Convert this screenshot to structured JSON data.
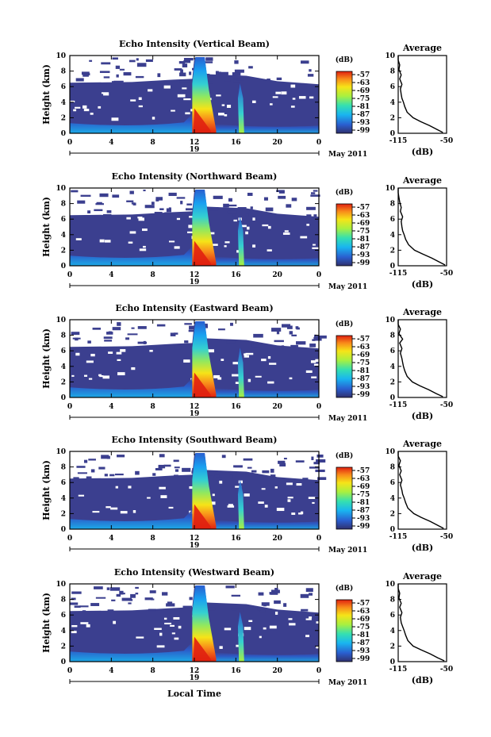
{
  "figure": {
    "xlabel": "Local Time",
    "date_label": "May 2011",
    "day_label": "19",
    "colorbar_unit": "(dB)",
    "colorbar_ticks": [
      "-57",
      "-63",
      "-69",
      "-75",
      "-81",
      "-87",
      "-93",
      "-99"
    ],
    "colors": {
      "background_echo": "#3b3f8f",
      "colormap": [
        "#30306e",
        "#2a5fd0",
        "#19b5f0",
        "#35e0b0",
        "#a8f040",
        "#f6e418",
        "#f88a1a",
        "#e02010"
      ]
    }
  },
  "chart_data": [
    {
      "type": "heatmap",
      "title": "Echo Intensity (Vertical Beam)",
      "ylabel": "Height (km)",
      "ylim": [
        0,
        10
      ],
      "yticks": [
        "0",
        "2",
        "4",
        "6",
        "8",
        "10"
      ],
      "xlim": [
        0,
        24
      ],
      "xticks": [
        "0",
        "4",
        "8",
        "12",
        "16",
        "20",
        "0"
      ],
      "colorbar": {
        "label": "(dB)",
        "range": [
          -99,
          -57
        ],
        "ticks": [
          "-57",
          "-63",
          "-69",
          "-75",
          "-81",
          "-87",
          "-93",
          "-99"
        ]
      },
      "profile": {
        "title": "Average",
        "xlabel": "(dB)",
        "xlim": [
          -115,
          -50
        ],
        "xticks": [
          "-115",
          "-50"
        ],
        "ylim": [
          0,
          10
        ],
        "yticks": [
          "0",
          "2",
          "4",
          "6",
          "8",
          "10"
        ],
        "x": [
          -55,
          -63,
          -73,
          -85,
          -95,
          -103,
          -106,
          -108,
          -110,
          -111,
          -112,
          -110,
          -113,
          -111,
          -114,
          -113,
          -115,
          -115
        ],
        "y": [
          0.1,
          0.5,
          1.0,
          1.5,
          2.0,
          2.7,
          3.4,
          4.0,
          4.5,
          5.0,
          5.7,
          6.3,
          7.0,
          7.5,
          8.2,
          8.8,
          9.4,
          10.0
        ]
      }
    },
    {
      "type": "heatmap",
      "title": "Echo Intensity (Northward Beam)",
      "ylabel": "Height (km)",
      "ylim": [
        0,
        10
      ],
      "yticks": [
        "0",
        "2",
        "4",
        "6",
        "8",
        "10"
      ],
      "xlim": [
        0,
        24
      ],
      "xticks": [
        "0",
        "4",
        "8",
        "12",
        "16",
        "20",
        "0"
      ],
      "colorbar": {
        "label": "(dB)",
        "range": [
          -99,
          -57
        ],
        "ticks": [
          "-57",
          "-63",
          "-69",
          "-75",
          "-81",
          "-87",
          "-93",
          "-99"
        ]
      },
      "profile": {
        "title": "Average",
        "xlabel": "(dB)",
        "xlim": [
          -115,
          -50
        ],
        "xticks": [
          "-115",
          "-50"
        ],
        "ylim": [
          0,
          10
        ],
        "yticks": [
          "0",
          "2",
          "4",
          "6",
          "8",
          "10"
        ],
        "x": [
          -52,
          -60,
          -70,
          -82,
          -93,
          -101,
          -105,
          -107,
          -109,
          -110,
          -111,
          -109,
          -112,
          -111,
          -113,
          -114,
          -115,
          -115
        ],
        "y": [
          0.1,
          0.5,
          1.0,
          1.5,
          2.0,
          2.7,
          3.4,
          4.0,
          4.5,
          5.0,
          5.7,
          6.3,
          7.0,
          7.5,
          8.2,
          8.8,
          9.4,
          10.0
        ]
      }
    },
    {
      "type": "heatmap",
      "title": "Echo Intensity (Eastward Beam)",
      "ylabel": "Height (km)",
      "ylim": [
        0,
        10
      ],
      "yticks": [
        "0",
        "2",
        "4",
        "6",
        "8",
        "10"
      ],
      "xlim": [
        0,
        24
      ],
      "xticks": [
        "0",
        "4",
        "8",
        "12",
        "16",
        "20",
        "0"
      ],
      "colorbar": {
        "label": "(dB)",
        "range": [
          -99,
          -57
        ],
        "ticks": [
          "-57",
          "-63",
          "-69",
          "-75",
          "-81",
          "-87",
          "-93",
          "-99"
        ]
      },
      "profile": {
        "title": "Average",
        "xlabel": "(dB)",
        "xlim": [
          -115,
          -50
        ],
        "xticks": [
          "-115",
          "-50"
        ],
        "ylim": [
          0,
          10
        ],
        "yticks": [
          "0",
          "2",
          "4",
          "6",
          "8",
          "10"
        ],
        "x": [
          -55,
          -64,
          -74,
          -86,
          -96,
          -103,
          -106,
          -108,
          -109,
          -110,
          -112,
          -110,
          -113,
          -109,
          -114,
          -112,
          -115,
          -115
        ],
        "y": [
          0.1,
          0.5,
          1.0,
          1.5,
          2.0,
          2.7,
          3.4,
          4.0,
          4.5,
          5.0,
          5.7,
          6.3,
          7.0,
          7.5,
          8.2,
          8.8,
          9.4,
          10.0
        ]
      }
    },
    {
      "type": "heatmap",
      "title": "Echo Intensity (Southward Beam)",
      "ylabel": "Height (km)",
      "ylim": [
        0,
        10
      ],
      "yticks": [
        "0",
        "2",
        "4",
        "6",
        "8",
        "10"
      ],
      "xlim": [
        0,
        24
      ],
      "xticks": [
        "0",
        "4",
        "8",
        "12",
        "16",
        "20",
        "0"
      ],
      "colorbar": {
        "label": "(dB)",
        "range": [
          -99,
          -57
        ],
        "ticks": [
          "-57",
          "-63",
          "-69",
          "-75",
          "-81",
          "-87",
          "-93",
          "-99"
        ]
      },
      "profile": {
        "title": "Average",
        "xlabel": "(dB)",
        "xlim": [
          -115,
          -50
        ],
        "xticks": [
          "-115",
          "-50"
        ],
        "ylim": [
          0,
          10
        ],
        "yticks": [
          "0",
          "2",
          "4",
          "6",
          "8",
          "10"
        ],
        "x": [
          -54,
          -62,
          -72,
          -84,
          -94,
          -102,
          -105,
          -107,
          -109,
          -110,
          -112,
          -110,
          -113,
          -111,
          -114,
          -112,
          -115,
          -115
        ],
        "y": [
          0.1,
          0.5,
          1.0,
          1.5,
          2.0,
          2.7,
          3.4,
          4.0,
          4.5,
          5.0,
          5.7,
          6.3,
          7.0,
          7.5,
          8.2,
          8.8,
          9.4,
          10.0
        ]
      }
    },
    {
      "type": "heatmap",
      "title": "Echo Intensity (Westward Beam)",
      "ylabel": "Height (km)",
      "ylim": [
        0,
        10
      ],
      "yticks": [
        "0",
        "2",
        "4",
        "6",
        "8",
        "10"
      ],
      "xlim": [
        0,
        24
      ],
      "xticks": [
        "0",
        "4",
        "8",
        "12",
        "16",
        "20",
        "0"
      ],
      "colorbar": {
        "label": "(dB)",
        "range": [
          -99,
          -57
        ],
        "ticks": [
          "-57",
          "-63",
          "-69",
          "-75",
          "-81",
          "-87",
          "-93",
          "-99"
        ]
      },
      "profile": {
        "title": "Average",
        "xlabel": "(dB)",
        "xlim": [
          -115,
          -50
        ],
        "xticks": [
          "-115",
          "-50"
        ],
        "ylim": [
          0,
          10
        ],
        "yticks": [
          "0",
          "2",
          "4",
          "6",
          "8",
          "10"
        ],
        "x": [
          -53,
          -62,
          -72,
          -84,
          -95,
          -102,
          -105,
          -107,
          -109,
          -111,
          -112,
          -110,
          -113,
          -111,
          -114,
          -113,
          -115,
          -115
        ],
        "y": [
          0.1,
          0.5,
          1.0,
          1.5,
          2.0,
          2.7,
          3.4,
          4.0,
          4.5,
          5.0,
          5.7,
          6.3,
          7.0,
          7.5,
          8.2,
          8.8,
          9.4,
          10.0
        ]
      }
    }
  ]
}
